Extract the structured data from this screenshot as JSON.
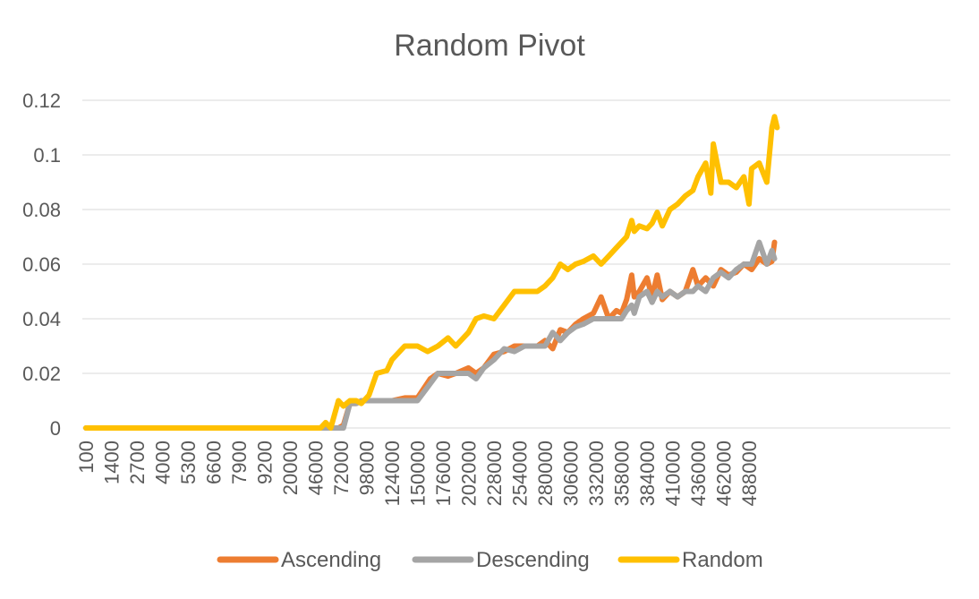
{
  "chart_data": {
    "type": "line",
    "title": "Random Pivot",
    "xlabel": "",
    "ylabel": "",
    "ylim": [
      0,
      0.12
    ],
    "yticks": [
      "0",
      "0.02",
      "0.04",
      "0.06",
      "0.08",
      "0.1",
      "0.12"
    ],
    "xtick_labels": [
      "100",
      "1400",
      "2700",
      "4000",
      "5300",
      "6600",
      "7900",
      "9200",
      "20000",
      "46000",
      "72000",
      "98000",
      "124000",
      "150000",
      "176000",
      "202000",
      "228000",
      "254000",
      "280000",
      "306000",
      "332000",
      "358000",
      "384000",
      "410000",
      "436000",
      "462000",
      "488000"
    ],
    "grid": true,
    "legend_position": "bottom",
    "series": [
      {
        "name": "Ascending",
        "color": "#ED7D31",
        "points": [
          [
            0,
            0
          ],
          [
            8,
            0
          ],
          [
            8.3,
            0
          ],
          [
            9.2,
            0
          ],
          [
            9.6,
            0
          ],
          [
            9.9,
            0
          ],
          [
            10.1,
            0.001
          ],
          [
            10.35,
            0.009
          ],
          [
            10.6,
            0.009
          ],
          [
            10.8,
            0.01
          ],
          [
            11.4,
            0.01
          ],
          [
            12.0,
            0.01
          ],
          [
            12.5,
            0.011
          ],
          [
            13.0,
            0.011
          ],
          [
            13.5,
            0.018
          ],
          [
            13.8,
            0.02
          ],
          [
            14.2,
            0.019
          ],
          [
            14.5,
            0.02
          ],
          [
            15.0,
            0.022
          ],
          [
            15.3,
            0.02
          ],
          [
            15.6,
            0.022
          ],
          [
            16.0,
            0.027
          ],
          [
            16.4,
            0.028
          ],
          [
            16.8,
            0.03
          ],
          [
            17.2,
            0.03
          ],
          [
            17.7,
            0.03
          ],
          [
            18.0,
            0.032
          ],
          [
            18.3,
            0.029
          ],
          [
            18.6,
            0.036
          ],
          [
            18.9,
            0.035
          ],
          [
            19.2,
            0.038
          ],
          [
            19.5,
            0.04
          ],
          [
            19.9,
            0.042
          ],
          [
            20.2,
            0.048
          ],
          [
            20.5,
            0.04
          ],
          [
            20.8,
            0.043
          ],
          [
            21.0,
            0.042
          ],
          [
            21.2,
            0.047
          ],
          [
            21.4,
            0.056
          ],
          [
            21.5,
            0.048
          ],
          [
            21.7,
            0.05
          ],
          [
            22.0,
            0.055
          ],
          [
            22.2,
            0.048
          ],
          [
            22.4,
            0.056
          ],
          [
            22.6,
            0.047
          ],
          [
            22.9,
            0.05
          ],
          [
            23.2,
            0.048
          ],
          [
            23.5,
            0.05
          ],
          [
            23.8,
            0.058
          ],
          [
            24.0,
            0.052
          ],
          [
            24.3,
            0.055
          ],
          [
            24.6,
            0.052
          ],
          [
            24.9,
            0.058
          ],
          [
            25.2,
            0.056
          ],
          [
            25.5,
            0.057
          ],
          [
            25.8,
            0.06
          ],
          [
            26.1,
            0.058
          ],
          [
            26.4,
            0.062
          ],
          [
            26.7,
            0.06
          ],
          [
            26.9,
            0.061
          ],
          [
            27.0,
            0.068
          ]
        ]
      },
      {
        "name": "Descending",
        "color": "#A5A5A5",
        "points": [
          [
            0,
            0
          ],
          [
            8,
            0
          ],
          [
            8.3,
            0
          ],
          [
            9.2,
            0
          ],
          [
            9.6,
            0
          ],
          [
            9.9,
            0
          ],
          [
            10.1,
            0
          ],
          [
            10.35,
            0.009
          ],
          [
            10.6,
            0.009
          ],
          [
            10.8,
            0.01
          ],
          [
            11.4,
            0.01
          ],
          [
            12.0,
            0.01
          ],
          [
            12.5,
            0.01
          ],
          [
            13.0,
            0.01
          ],
          [
            13.4,
            0.015
          ],
          [
            13.8,
            0.02
          ],
          [
            14.2,
            0.02
          ],
          [
            14.5,
            0.02
          ],
          [
            15.0,
            0.02
          ],
          [
            15.3,
            0.018
          ],
          [
            15.6,
            0.022
          ],
          [
            16.0,
            0.025
          ],
          [
            16.4,
            0.029
          ],
          [
            16.8,
            0.028
          ],
          [
            17.2,
            0.03
          ],
          [
            17.7,
            0.03
          ],
          [
            18.0,
            0.03
          ],
          [
            18.3,
            0.035
          ],
          [
            18.6,
            0.032
          ],
          [
            18.9,
            0.035
          ],
          [
            19.2,
            0.037
          ],
          [
            19.5,
            0.038
          ],
          [
            19.9,
            0.04
          ],
          [
            20.2,
            0.04
          ],
          [
            20.5,
            0.04
          ],
          [
            20.8,
            0.04
          ],
          [
            21.0,
            0.04
          ],
          [
            21.2,
            0.043
          ],
          [
            21.4,
            0.045
          ],
          [
            21.5,
            0.042
          ],
          [
            21.7,
            0.048
          ],
          [
            22.0,
            0.05
          ],
          [
            22.2,
            0.046
          ],
          [
            22.4,
            0.05
          ],
          [
            22.6,
            0.048
          ],
          [
            22.9,
            0.05
          ],
          [
            23.2,
            0.048
          ],
          [
            23.5,
            0.05
          ],
          [
            23.8,
            0.05
          ],
          [
            24.0,
            0.052
          ],
          [
            24.3,
            0.05
          ],
          [
            24.6,
            0.055
          ],
          [
            24.9,
            0.057
          ],
          [
            25.2,
            0.055
          ],
          [
            25.5,
            0.058
          ],
          [
            25.8,
            0.06
          ],
          [
            26.1,
            0.06
          ],
          [
            26.4,
            0.068
          ],
          [
            26.7,
            0.06
          ],
          [
            26.9,
            0.065
          ],
          [
            27.0,
            0.062
          ]
        ]
      },
      {
        "name": "Random",
        "color": "#FFC000",
        "points": [
          [
            0,
            0
          ],
          [
            8,
            0
          ],
          [
            8.3,
            0
          ],
          [
            9.2,
            0
          ],
          [
            9.4,
            0.002
          ],
          [
            9.6,
            0
          ],
          [
            9.9,
            0.01
          ],
          [
            10.1,
            0.008
          ],
          [
            10.35,
            0.01
          ],
          [
            10.6,
            0.01
          ],
          [
            10.8,
            0.009
          ],
          [
            11.1,
            0.012
          ],
          [
            11.4,
            0.02
          ],
          [
            11.8,
            0.021
          ],
          [
            12.0,
            0.025
          ],
          [
            12.5,
            0.03
          ],
          [
            13.0,
            0.03
          ],
          [
            13.4,
            0.028
          ],
          [
            13.8,
            0.03
          ],
          [
            14.2,
            0.033
          ],
          [
            14.5,
            0.03
          ],
          [
            15.0,
            0.035
          ],
          [
            15.3,
            0.04
          ],
          [
            15.6,
            0.041
          ],
          [
            16.0,
            0.04
          ],
          [
            16.4,
            0.045
          ],
          [
            16.8,
            0.05
          ],
          [
            17.2,
            0.05
          ],
          [
            17.7,
            0.05
          ],
          [
            18.0,
            0.052
          ],
          [
            18.3,
            0.055
          ],
          [
            18.6,
            0.06
          ],
          [
            18.9,
            0.058
          ],
          [
            19.2,
            0.06
          ],
          [
            19.5,
            0.061
          ],
          [
            19.9,
            0.063
          ],
          [
            20.2,
            0.06
          ],
          [
            20.5,
            0.063
          ],
          [
            20.8,
            0.066
          ],
          [
            21.0,
            0.068
          ],
          [
            21.2,
            0.07
          ],
          [
            21.4,
            0.076
          ],
          [
            21.5,
            0.072
          ],
          [
            21.7,
            0.074
          ],
          [
            22.0,
            0.073
          ],
          [
            22.2,
            0.075
          ],
          [
            22.4,
            0.079
          ],
          [
            22.6,
            0.074
          ],
          [
            22.9,
            0.08
          ],
          [
            23.2,
            0.082
          ],
          [
            23.5,
            0.085
          ],
          [
            23.8,
            0.087
          ],
          [
            24.0,
            0.092
          ],
          [
            24.3,
            0.097
          ],
          [
            24.5,
            0.086
          ],
          [
            24.6,
            0.104
          ],
          [
            24.9,
            0.09
          ],
          [
            25.2,
            0.09
          ],
          [
            25.5,
            0.088
          ],
          [
            25.8,
            0.092
          ],
          [
            26.0,
            0.082
          ],
          [
            26.1,
            0.095
          ],
          [
            26.4,
            0.097
          ],
          [
            26.7,
            0.09
          ],
          [
            26.9,
            0.11
          ],
          [
            27.0,
            0.114
          ],
          [
            27.1,
            0.11
          ]
        ]
      }
    ]
  }
}
